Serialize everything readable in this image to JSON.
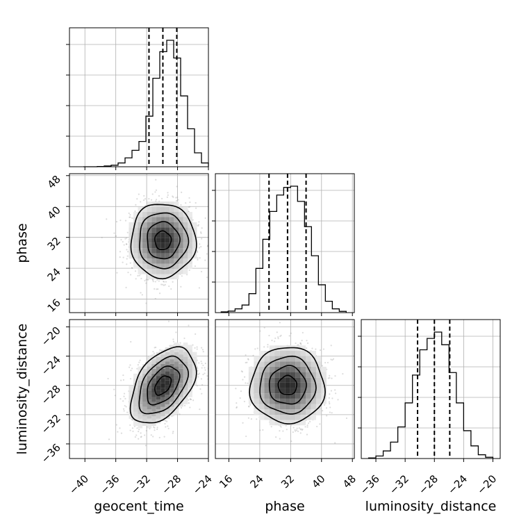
{
  "chart_data": {
    "type": "corner",
    "parameters": [
      "geocent_time",
      "phase",
      "luminosity_distance"
    ],
    "axis_labels": {
      "geocent_time": "geocent_time",
      "phase": "phase",
      "luminosity_distance": "luminosity_distance"
    },
    "ranges": {
      "geocent_time": [
        -42,
        -24
      ],
      "phase": [
        12.5,
        48.5
      ],
      "luminosity_distance": [
        -38,
        -19
      ]
    },
    "ticks": {
      "geocent_time": [
        "−40",
        "−36",
        "−32",
        "−28",
        "−24"
      ],
      "phase": [
        "16",
        "24",
        "32",
        "40",
        "48"
      ],
      "luminosity_distance": [
        "−36",
        "−32",
        "−28",
        "−24",
        "−20"
      ]
    },
    "tick_values": {
      "geocent_time": [
        -40,
        -36,
        -32,
        -28,
        -24
      ],
      "phase": [
        16,
        24,
        32,
        40,
        48
      ],
      "luminosity_distance": [
        -36,
        -32,
        -28,
        -24,
        -20
      ]
    },
    "quantiles": {
      "geocent_time": [
        -31.7,
        -29.9,
        -28.1
      ],
      "phase": [
        26.4,
        31.2,
        36.0
      ],
      "luminosity_distance": [
        -30.3,
        -28.0,
        -25.9
      ]
    },
    "histograms": {
      "geocent_time": {
        "edges": [
          -40.2,
          -39.3,
          -38.4,
          -37.5,
          -36.6,
          -35.7,
          -34.8,
          -33.9,
          -33.0,
          -32.1,
          -31.2,
          -30.3,
          -29.4,
          -28.5,
          -27.6,
          -26.7,
          -25.8,
          -24.9,
          -24.0
        ],
        "counts": [
          0,
          0,
          0.002,
          0.006,
          0.012,
          0.03,
          0.07,
          0.13,
          0.2,
          0.4,
          0.7,
          0.91,
          1.0,
          0.86,
          0.56,
          0.3,
          0.11,
          0.03
        ]
      },
      "phase": {
        "edges": [
          14.0,
          15.8,
          17.6,
          19.4,
          21.2,
          23.0,
          24.8,
          26.6,
          28.4,
          30.2,
          32.0,
          33.8,
          35.6,
          37.4,
          39.2,
          41.0,
          42.8,
          44.6,
          46.4
        ],
        "counts": [
          0.006,
          0.012,
          0.03,
          0.06,
          0.15,
          0.35,
          0.58,
          0.8,
          0.93,
          0.99,
          1.0,
          0.88,
          0.68,
          0.45,
          0.22,
          0.09,
          0.03,
          0.01
        ]
      },
      "luminosity_distance": {
        "edges": [
          -37.0,
          -36.0,
          -35.0,
          -34.0,
          -33.0,
          -32.0,
          -31.0,
          -30.0,
          -29.0,
          -28.0,
          -27.0,
          -26.0,
          -25.0,
          -24.0,
          -23.0,
          -22.0,
          -21.0,
          -20.0
        ],
        "counts": [
          0.005,
          0.02,
          0.06,
          0.13,
          0.25,
          0.44,
          0.66,
          0.86,
          0.95,
          1.0,
          0.9,
          0.68,
          0.44,
          0.22,
          0.1,
          0.03,
          0.01
        ]
      }
    },
    "pairs": [
      {
        "x": "geocent_time",
        "y": "phase",
        "center": [
          -29.9,
          31.2
        ],
        "sd": [
          2.1,
          4.8
        ],
        "corr": 0.0
      },
      {
        "x": "geocent_time",
        "y": "luminosity_distance",
        "center": [
          -29.9,
          -28.0
        ],
        "sd": [
          2.1,
          2.6
        ],
        "corr": 0.45
      },
      {
        "x": "phase",
        "y": "luminosity_distance",
        "center": [
          31.2,
          -28.0
        ],
        "sd": [
          4.8,
          2.6
        ],
        "corr": 0.0
      }
    ],
    "contour_levels_sigma": [
      0.5,
      1.0,
      1.5,
      2.0
    ],
    "grid": true
  }
}
